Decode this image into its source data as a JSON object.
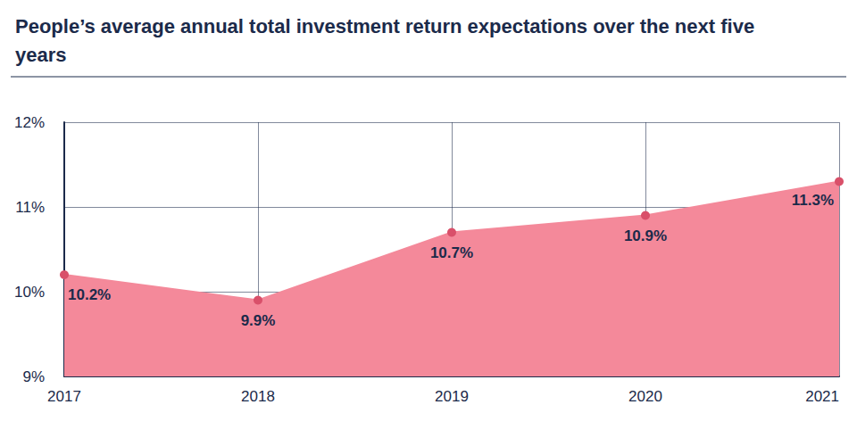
{
  "chart_data": {
    "type": "line",
    "title": "People’s average annual total investment return expectations over the next five years",
    "categories": [
      "2017",
      "2018",
      "2019",
      "2020",
      "2021"
    ],
    "values": [
      10.2,
      9.9,
      10.7,
      10.9,
      11.3
    ],
    "value_labels": [
      "10.2%",
      "9.9%",
      "10.7%",
      "10.9%",
      "11.3%"
    ],
    "color": "#f4899a",
    "marker": "circle",
    "ylim": [
      9,
      12
    ],
    "yticks": [
      {
        "value": 9,
        "label": "9%"
      },
      {
        "value": 10,
        "label": "10%"
      },
      {
        "value": 11,
        "label": "11%"
      },
      {
        "value": 12,
        "label": "12%"
      }
    ],
    "grid": true,
    "data_labels": true
  }
}
